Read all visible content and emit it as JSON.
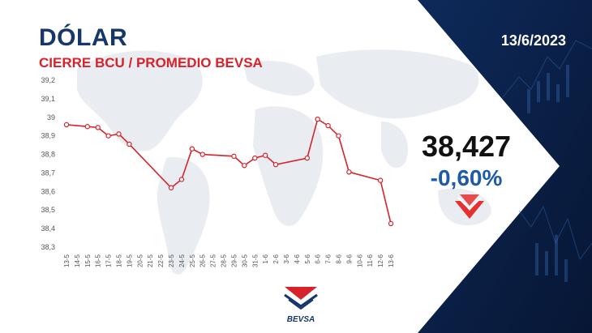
{
  "header": {
    "title": "DÓLAR",
    "subtitle": "CIERRE BCU / PROMEDIO BEVSA",
    "date": "13/6/2023"
  },
  "summary": {
    "value": "38,427",
    "change": "-0,60%",
    "arrow_icon": "down-arrow-icon"
  },
  "brand": {
    "name": "BEVSA"
  },
  "colors": {
    "title": "#17366b",
    "subtitle": "#d8222b",
    "line": "#d8222b",
    "change": "#1f5aa8",
    "panel": "#0b1f45"
  },
  "chart_data": {
    "type": "line",
    "title": "",
    "xlabel": "",
    "ylabel": "",
    "ylim": [
      38.3,
      39.2
    ],
    "yticks": [
      "38,3",
      "38,4",
      "38,5",
      "38,6",
      "38,7",
      "38,8",
      "38,9",
      "39",
      "39,1",
      "39,2"
    ],
    "ytick_values": [
      38.3,
      38.4,
      38.5,
      38.6,
      38.7,
      38.8,
      38.9,
      39.0,
      39.1,
      39.2
    ],
    "categories": [
      "13-5",
      "14-5",
      "15-5",
      "16-5",
      "17-5",
      "18-5",
      "19-5",
      "20-5",
      "21-5",
      "22-5",
      "23-5",
      "24-5",
      "25-5",
      "26-5",
      "27-5",
      "28-5",
      "29-5",
      "30-5",
      "31-5",
      "1-6",
      "2-6",
      "3-6",
      "4-6",
      "5-6",
      "6-6",
      "7-6",
      "8-6",
      "9-6",
      "10-6",
      "11-6",
      "12-6",
      "13-6"
    ],
    "series": [
      {
        "values": [
          38.96,
          null,
          38.95,
          38.945,
          38.9,
          38.91,
          38.855,
          null,
          null,
          null,
          38.62,
          38.665,
          38.83,
          38.8,
          null,
          null,
          38.79,
          38.74,
          38.78,
          38.795,
          38.745,
          null,
          null,
          38.78,
          38.99,
          38.955,
          38.9,
          38.705,
          null,
          null,
          38.66,
          38.427
        ]
      }
    ],
    "grid": false,
    "legend": "none"
  }
}
